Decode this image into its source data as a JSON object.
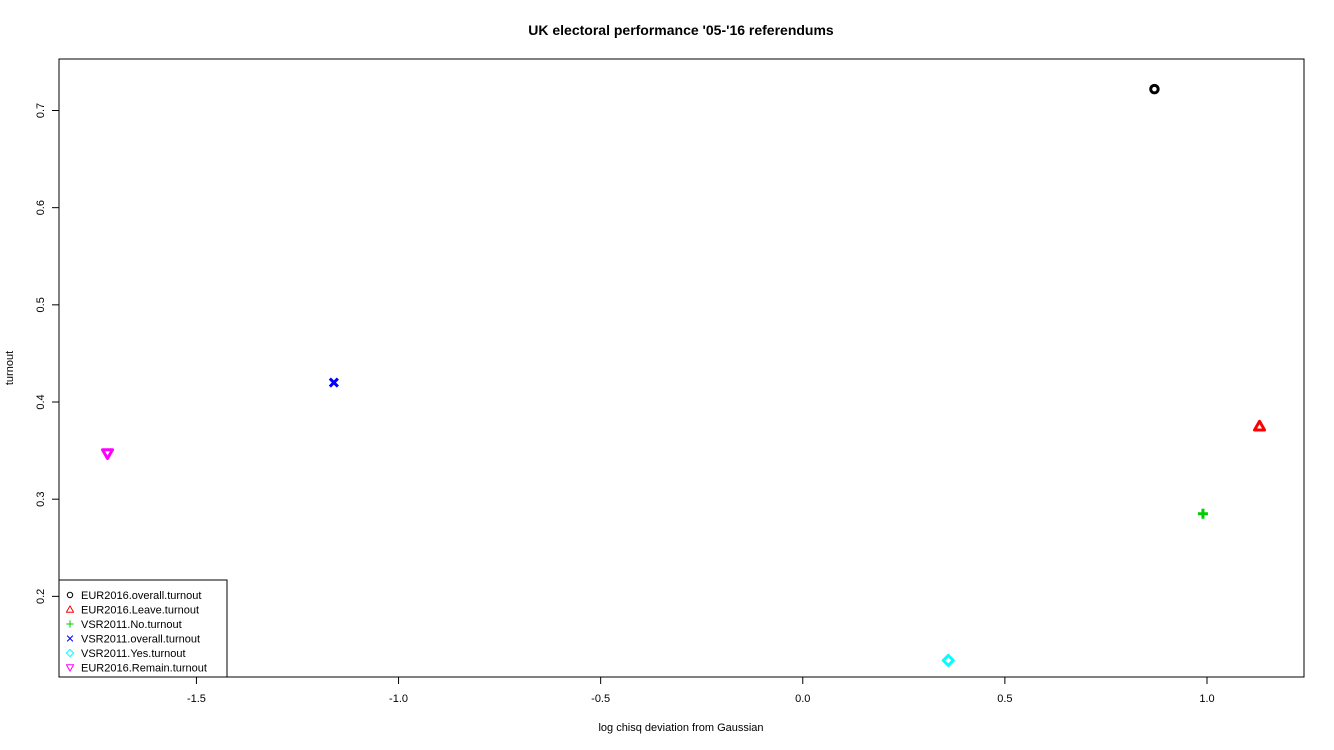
{
  "chart_data": {
    "type": "scatter",
    "title": "UK electoral performance '05-'16 referendums",
    "xlabel": "log chisq deviation from Gaussian",
    "ylabel": "turnout",
    "xlim": [
      -1.84,
      1.24
    ],
    "ylim": [
      0.117,
      0.753
    ],
    "x_ticks": [
      "-1.5",
      "-1.0",
      "-0.5",
      "0.0",
      "0.5",
      "1.0"
    ],
    "y_ticks": [
      "0.2",
      "0.3",
      "0.4",
      "0.5",
      "0.6",
      "0.7"
    ],
    "grid": false,
    "legend_position": "bottom-left",
    "series": [
      {
        "name": "EUR2016.overall.turnout",
        "marker": "circle",
        "color": "#000000",
        "x": 0.87,
        "y": 0.722
      },
      {
        "name": "EUR2016.Leave.turnout",
        "marker": "triangle",
        "color": "#ff0000",
        "x": 1.13,
        "y": 0.375
      },
      {
        "name": "VSR2011.No.turnout",
        "marker": "plus",
        "color": "#00cd00",
        "x": 0.99,
        "y": 0.285
      },
      {
        "name": "VSR2011.overall.turnout",
        "marker": "cross",
        "color": "#0000ff",
        "x": -1.16,
        "y": 0.42
      },
      {
        "name": "VSR2011.Yes.turnout",
        "marker": "diamond",
        "color": "#00ffff",
        "x": 0.36,
        "y": 0.134
      },
      {
        "name": "EUR2016.Remain.turnout",
        "marker": "triangle-down",
        "color": "#ff00ff",
        "x": -1.72,
        "y": 0.347
      }
    ]
  }
}
